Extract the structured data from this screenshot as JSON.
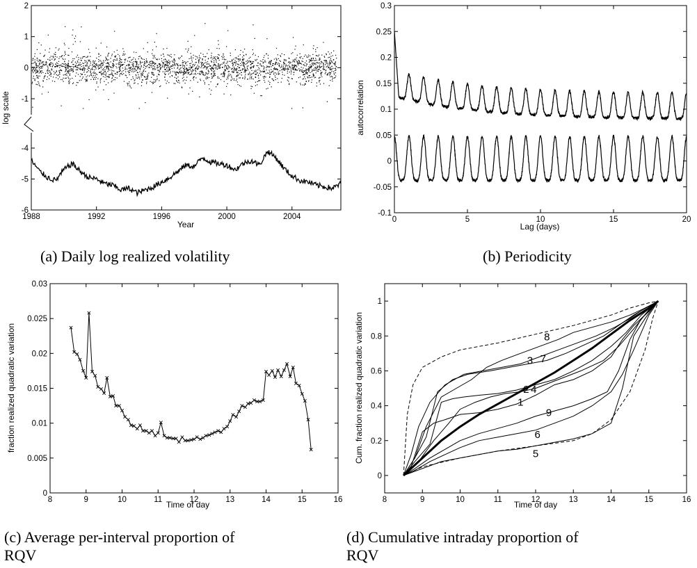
{
  "panels": [
    {
      "id": "a",
      "type": "scatter+line",
      "caption": "(a) Daily log realized volatility",
      "xlabel": "Year",
      "ylabel": "log scale",
      "xlim": [
        1988,
        2007
      ],
      "xticks": [
        1988,
        1992,
        1996,
        2000,
        2004
      ],
      "yticks_upper": [
        "2",
        "1",
        "0",
        "-1"
      ],
      "yticks_lower": [
        "-4",
        "-5",
        "-6"
      ],
      "axis_break": true,
      "series": [
        {
          "role": "scatter",
          "center": 0.0,
          "spread": 0.25,
          "range": [
            -1.3,
            1.6
          ],
          "points": 2400
        },
        {
          "role": "line",
          "x": [
            1988.0,
            1988.5,
            1989.0,
            1989.5,
            1990.0,
            1990.5,
            1991.0,
            1991.5,
            1992.0,
            1992.5,
            1993.0,
            1993.5,
            1994.0,
            1994.5,
            1995.0,
            1995.5,
            1996.0,
            1996.5,
            1997.0,
            1997.5,
            1998.0,
            1998.5,
            1999.0,
            1999.5,
            2000.0,
            2000.5,
            2001.0,
            2001.5,
            2002.0,
            2002.5,
            2003.0,
            2003.5,
            2004.0,
            2004.5,
            2005.0,
            2005.5,
            2006.0,
            2006.5,
            2007.0
          ],
          "y": [
            -4.4,
            -4.75,
            -4.95,
            -5.05,
            -4.7,
            -4.5,
            -4.75,
            -4.95,
            -5.0,
            -5.15,
            -5.2,
            -5.35,
            -5.3,
            -5.45,
            -5.35,
            -5.25,
            -5.1,
            -4.95,
            -4.75,
            -4.55,
            -4.6,
            -4.3,
            -4.45,
            -4.5,
            -4.55,
            -4.7,
            -4.5,
            -4.4,
            -4.55,
            -4.1,
            -4.3,
            -4.65,
            -4.9,
            -5.05,
            -5.1,
            -5.2,
            -5.25,
            -5.3,
            -5.15
          ]
        }
      ]
    },
    {
      "id": "b",
      "type": "line",
      "caption": "(b) Periodicity",
      "xlabel": "Lag (days)",
      "ylabel": "autocorrelation",
      "xlim": [
        0,
        20
      ],
      "ylim": [
        -0.1,
        0.3
      ],
      "xticks": [
        "0",
        "5",
        "10",
        "15",
        "20"
      ],
      "yticks": [
        "0.3",
        "0.25",
        "0.2",
        "0.15",
        "0.1",
        "0.05",
        "0",
        "-0.05",
        "-0.1"
      ],
      "period_days": 1,
      "series": [
        {
          "role": "upper",
          "start": 0.25,
          "baseline_start": 0.145,
          "baseline_end": 0.1,
          "amplitude": 0.055
        },
        {
          "role": "lower",
          "baseline": 0.005,
          "amplitude": 0.085
        }
      ]
    },
    {
      "id": "c",
      "type": "line",
      "caption_line1": "(c) Average per-interval proportion of",
      "caption_line2": "RQV",
      "xlabel": "Time of day",
      "ylabel": "fraction realized quadratic variation",
      "xlim": [
        8,
        16
      ],
      "ylim": [
        0,
        0.03
      ],
      "xticks": [
        "8",
        "9",
        "10",
        "11",
        "12",
        "13",
        "14",
        "15",
        "16"
      ],
      "yticks": [
        "0.03",
        "0.025",
        "0.02",
        "0.015",
        "0.01",
        "0.005",
        "0"
      ],
      "x": [
        8.58,
        8.67,
        8.75,
        8.83,
        8.92,
        9.0,
        9.08,
        9.17,
        9.25,
        9.33,
        9.42,
        9.5,
        9.58,
        9.67,
        9.75,
        9.83,
        9.92,
        10.0,
        10.08,
        10.17,
        10.25,
        10.33,
        10.42,
        10.5,
        10.58,
        10.67,
        10.75,
        10.83,
        10.92,
        11.0,
        11.08,
        11.17,
        11.25,
        11.33,
        11.42,
        11.5,
        11.58,
        11.67,
        11.75,
        11.83,
        11.92,
        12.0,
        12.08,
        12.17,
        12.25,
        12.33,
        12.42,
        12.5,
        12.58,
        12.67,
        12.75,
        12.83,
        12.92,
        13.0,
        13.08,
        13.17,
        13.25,
        13.33,
        13.42,
        13.5,
        13.58,
        13.67,
        13.75,
        13.83,
        13.92,
        14.0,
        14.08,
        14.17,
        14.25,
        14.33,
        14.42,
        14.5,
        14.58,
        14.67,
        14.75,
        14.83,
        14.92,
        15.0,
        15.08,
        15.17,
        15.25
      ],
      "y": [
        0.0237,
        0.0202,
        0.0199,
        0.0191,
        0.0175,
        0.0165,
        0.0258,
        0.0174,
        0.0168,
        0.0152,
        0.0149,
        0.0143,
        0.0165,
        0.0138,
        0.0139,
        0.0125,
        0.0125,
        0.0118,
        0.0109,
        0.0105,
        0.0097,
        0.0096,
        0.0092,
        0.0097,
        0.0089,
        0.0089,
        0.0086,
        0.0089,
        0.0082,
        0.0086,
        0.0101,
        0.0082,
        0.0079,
        0.0079,
        0.0078,
        0.0078,
        0.0073,
        0.008,
        0.0075,
        0.0075,
        0.0076,
        0.0077,
        0.008,
        0.0077,
        0.0079,
        0.0082,
        0.0083,
        0.0085,
        0.0087,
        0.0089,
        0.0087,
        0.0092,
        0.0095,
        0.0103,
        0.0112,
        0.0109,
        0.0117,
        0.0125,
        0.0123,
        0.0128,
        0.0129,
        0.0133,
        0.0131,
        0.0131,
        0.0133,
        0.0174,
        0.0169,
        0.0175,
        0.0166,
        0.0176,
        0.0167,
        0.0176,
        0.0185,
        0.0167,
        0.018,
        0.0157,
        0.0154,
        0.0142,
        0.0132,
        0.0105,
        0.0062
      ]
    },
    {
      "id": "d",
      "type": "line",
      "caption_line1": "(d) Cumulative intraday proportion of",
      "caption_line2": "RQV",
      "xlabel": "Time of day",
      "ylabel": "Cum. fraction realized quadratic variation",
      "xlim": [
        8,
        16
      ],
      "ylim": [
        -0.1,
        1.1
      ],
      "xticks": [
        "8",
        "9",
        "10",
        "11",
        "12",
        "13",
        "14",
        "15",
        "16"
      ],
      "yticks": [
        "1",
        "0.8",
        "0.6",
        "0.4",
        "0.2",
        "0"
      ],
      "mean_curve": {
        "x": [
          8.5,
          9.0,
          9.5,
          10.0,
          10.5,
          11.0,
          11.5,
          12.0,
          12.5,
          13.0,
          13.5,
          14.0,
          14.5,
          15.0,
          15.25
        ],
        "y": [
          0.0,
          0.1,
          0.2,
          0.28,
          0.35,
          0.41,
          0.47,
          0.53,
          0.59,
          0.66,
          0.73,
          0.81,
          0.89,
          0.96,
          1.0
        ]
      },
      "upper_bound": {
        "x": [
          8.5,
          8.6,
          8.75,
          9.0,
          9.5,
          10.0,
          11.0,
          12.0,
          13.0,
          14.0,
          14.5,
          15.0,
          15.25
        ],
        "y": [
          0.0,
          0.35,
          0.52,
          0.62,
          0.68,
          0.72,
          0.76,
          0.81,
          0.86,
          0.92,
          0.96,
          0.99,
          1.0
        ]
      },
      "lower_bound": {
        "x": [
          8.5,
          9.0,
          10.0,
          11.0,
          12.0,
          13.0,
          13.5,
          14.0,
          14.5,
          14.9,
          15.1,
          15.25
        ],
        "y": [
          0.0,
          0.05,
          0.1,
          0.14,
          0.17,
          0.2,
          0.24,
          0.32,
          0.48,
          0.72,
          0.9,
          1.0
        ]
      },
      "days": [
        {
          "label": "1",
          "label_x": 11.6,
          "label_y": 0.4,
          "x": [
            8.5,
            8.7,
            9.0,
            9.3,
            9.6,
            10.0,
            10.5,
            11.0,
            11.5,
            12.0,
            12.5,
            13.0,
            13.5,
            14.0,
            14.3,
            14.6,
            15.0,
            15.25
          ],
          "y": [
            0.0,
            0.05,
            0.25,
            0.3,
            0.32,
            0.35,
            0.36,
            0.38,
            0.41,
            0.46,
            0.52,
            0.55,
            0.6,
            0.68,
            0.78,
            0.86,
            0.94,
            1.0
          ]
        },
        {
          "label": "2",
          "label_x": 11.75,
          "label_y": 0.475,
          "x": [
            8.5,
            8.8,
            9.2,
            9.5,
            9.8,
            10.1,
            10.5,
            11.0,
            11.5,
            12.0,
            12.5,
            13.0,
            13.5,
            14.0,
            14.4,
            14.8,
            15.25
          ],
          "y": [
            0.0,
            0.08,
            0.18,
            0.42,
            0.44,
            0.45,
            0.46,
            0.47,
            0.49,
            0.52,
            0.55,
            0.6,
            0.66,
            0.74,
            0.82,
            0.92,
            1.0
          ]
        },
        {
          "label": "3",
          "label_x": 11.85,
          "label_y": 0.64,
          "x": [
            8.5,
            8.8,
            9.1,
            9.4,
            9.8,
            10.2,
            10.8,
            11.3,
            11.8,
            12.3,
            12.8,
            13.3,
            13.8,
            14.2,
            14.6,
            15.0,
            15.25
          ],
          "y": [
            0.0,
            0.1,
            0.22,
            0.48,
            0.55,
            0.58,
            0.6,
            0.62,
            0.64,
            0.66,
            0.7,
            0.75,
            0.8,
            0.86,
            0.92,
            0.97,
            1.0
          ]
        },
        {
          "label": "4",
          "label_x": 11.95,
          "label_y": 0.475,
          "x": [
            8.5,
            8.9,
            9.3,
            9.7,
            10.0,
            10.4,
            10.8,
            11.2,
            11.6,
            12.0,
            12.6,
            13.2,
            13.8,
            14.2,
            14.6,
            15.0,
            15.25
          ],
          "y": [
            0.0,
            0.08,
            0.2,
            0.3,
            0.38,
            0.42,
            0.45,
            0.47,
            0.48,
            0.5,
            0.55,
            0.6,
            0.66,
            0.74,
            0.84,
            0.95,
            1.0
          ]
        },
        {
          "label": "5",
          "label_x": 12.0,
          "label_y": 0.105,
          "x": [
            8.5,
            9.0,
            9.5,
            10.0,
            10.5,
            11.0,
            11.5,
            12.0,
            12.5,
            13.0,
            13.5,
            14.0,
            14.3,
            14.6,
            14.9,
            15.1,
            15.25
          ],
          "y": [
            0.0,
            0.04,
            0.08,
            0.1,
            0.12,
            0.14,
            0.15,
            0.17,
            0.19,
            0.21,
            0.24,
            0.3,
            0.5,
            0.8,
            0.9,
            0.96,
            1.0
          ]
        },
        {
          "label": "6",
          "label_x": 12.05,
          "label_y": 0.215,
          "x": [
            8.5,
            8.8,
            9.2,
            9.6,
            10.0,
            10.5,
            11.0,
            11.5,
            12.0,
            12.5,
            13.0,
            13.5,
            14.0,
            14.3,
            14.6,
            15.0,
            15.25
          ],
          "y": [
            0.0,
            0.03,
            0.08,
            0.12,
            0.16,
            0.2,
            0.22,
            0.24,
            0.26,
            0.3,
            0.34,
            0.4,
            0.48,
            0.58,
            0.72,
            0.92,
            1.0
          ]
        },
        {
          "label": "7",
          "label_x": 12.2,
          "label_y": 0.65,
          "x": [
            8.5,
            8.7,
            8.9,
            9.2,
            9.6,
            10.1,
            10.6,
            11.1,
            11.6,
            12.1,
            12.6,
            13.1,
            13.6,
            14.1,
            14.5,
            14.9,
            15.25
          ],
          "y": [
            0.0,
            0.12,
            0.28,
            0.42,
            0.52,
            0.58,
            0.6,
            0.62,
            0.64,
            0.68,
            0.72,
            0.76,
            0.8,
            0.85,
            0.9,
            0.96,
            1.0
          ]
        },
        {
          "label": "8",
          "label_x": 12.3,
          "label_y": 0.775,
          "x": [
            8.5,
            8.8,
            9.1,
            9.5,
            9.9,
            10.3,
            10.7,
            11.1,
            11.6,
            12.1,
            12.6,
            13.0,
            13.5,
            14.0,
            14.5,
            15.0,
            15.25
          ],
          "y": [
            0.0,
            0.1,
            0.28,
            0.45,
            0.5,
            0.55,
            0.62,
            0.66,
            0.7,
            0.74,
            0.78,
            0.82,
            0.85,
            0.88,
            0.92,
            0.97,
            1.0
          ]
        },
        {
          "label": "9",
          "label_x": 12.35,
          "label_y": 0.34,
          "x": [
            8.5,
            8.8,
            9.2,
            9.6,
            10.0,
            10.5,
            11.0,
            11.5,
            12.0,
            12.5,
            13.0,
            13.5,
            13.9,
            14.2,
            14.5,
            14.8,
            15.25
          ],
          "y": [
            0.0,
            0.04,
            0.1,
            0.15,
            0.2,
            0.24,
            0.27,
            0.3,
            0.34,
            0.37,
            0.4,
            0.44,
            0.48,
            0.6,
            0.78,
            0.9,
            1.0
          ]
        }
      ]
    }
  ]
}
